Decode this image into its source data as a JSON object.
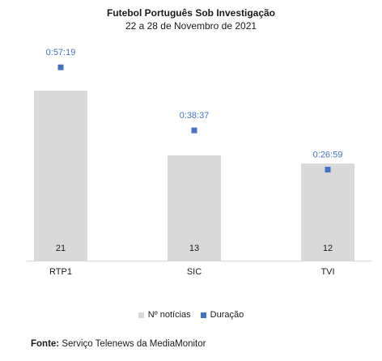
{
  "chart_data": {
    "type": "bar",
    "title": "Futebol Português Sob Investigação",
    "subtitle": "22 a 28 de Novembro de 2021",
    "categories": [
      "RTP1",
      "SIC",
      "TVI"
    ],
    "series": [
      {
        "name": "Nº notícias",
        "type": "bar",
        "values": [
          21,
          13,
          12
        ],
        "color": "#d9d9d9",
        "axis": "primary"
      },
      {
        "name": "Duração",
        "type": "marker",
        "values": [
          "0:57:19",
          "0:38:37",
          "0:26:59"
        ],
        "seconds": [
          3439,
          2317,
          1619
        ],
        "color": "#4472c4",
        "axis": "secondary"
      }
    ],
    "ylim": [
      0,
      25
    ],
    "y2lim_seconds": [
      0,
      3600
    ],
    "legend": "bottom",
    "grid": false
  },
  "source": {
    "label": "Fonte:",
    "text": "Serviço Telenews da MediaMonitor"
  }
}
